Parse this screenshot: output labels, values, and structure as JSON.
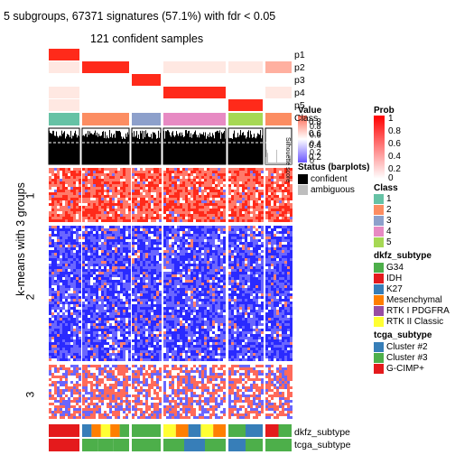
{
  "chart_data": {
    "type": "heatmap",
    "title": "5 subgroups, 67371 signatures (57.1%) with fdr < 0.05",
    "subtitle": "121 confident samples",
    "ylabel": "k-means with 3 groups",
    "row_groups": [
      "1",
      "2",
      "3"
    ],
    "column_classes": [
      "1",
      "2",
      "3",
      "4",
      "5",
      "2"
    ],
    "prob_rows": [
      "p1",
      "p2",
      "p3",
      "p4",
      "p5"
    ],
    "annotation_rows": [
      "Class",
      "dkfz_subtype",
      "tcga_subtype"
    ],
    "silhouette_label": "Silhouette score",
    "silhouette_ticks": [
      "0.8",
      "0.6",
      "0.4",
      "0.2",
      "0"
    ],
    "silhouette_title_overlap": "Value",
    "legends": {
      "value": {
        "title": "Value",
        "ticks": [
          "0.8",
          "0.6",
          "0.4",
          "0.2"
        ]
      },
      "status": {
        "title": "Status (barplots)",
        "items": [
          {
            "label": "confident",
            "color": "#000000"
          },
          {
            "label": "ambiguous",
            "color": "#bebebe"
          }
        ]
      },
      "prob": {
        "title": "Prob",
        "ticks": [
          "1",
          "0.8",
          "0.6",
          "0.4",
          "0.2",
          "0"
        ]
      },
      "class": {
        "title": "Class",
        "items": [
          {
            "label": "1",
            "color": "#66c2a5"
          },
          {
            "label": "2",
            "color": "#fc8d62"
          },
          {
            "label": "3",
            "color": "#8da0cb"
          },
          {
            "label": "4",
            "color": "#e78ac3"
          },
          {
            "label": "5",
            "color": "#a6d854"
          }
        ]
      },
      "dkfz": {
        "title": "dkfz_subtype",
        "items": [
          {
            "label": "G34",
            "color": "#4daf4a"
          },
          {
            "label": "IDH",
            "color": "#e41a1c"
          },
          {
            "label": "K27",
            "color": "#377eb8"
          },
          {
            "label": "Mesenchymal",
            "color": "#ff7f00"
          },
          {
            "label": "RTK I PDGFRA",
            "color": "#984ea3"
          },
          {
            "label": "RTK II Classic",
            "color": "#ffff33"
          }
        ]
      },
      "tcga": {
        "title": "tcga_subtype",
        "items": [
          {
            "label": "Cluster #2",
            "color": "#377eb8"
          },
          {
            "label": "Cluster #3",
            "color": "#4daf4a"
          },
          {
            "label": "G-CIMP+",
            "color": "#e41a1c"
          }
        ]
      }
    }
  }
}
